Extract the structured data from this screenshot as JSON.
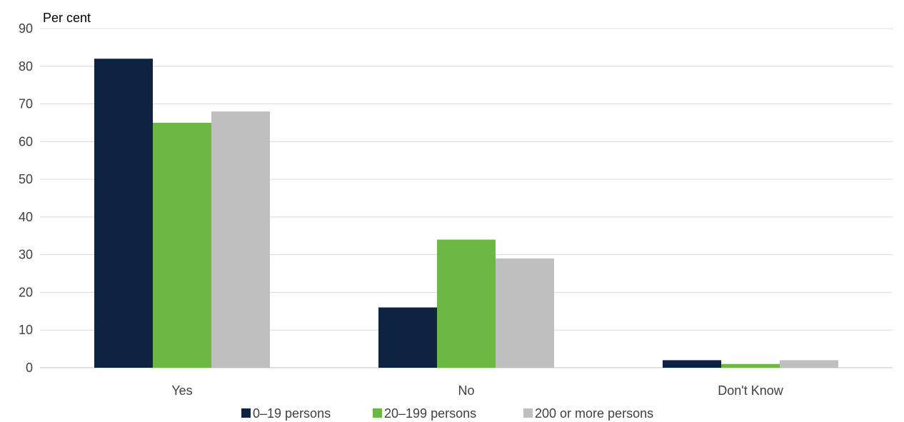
{
  "chart_data": {
    "type": "bar",
    "unit_label": "Per cent",
    "categories": [
      "Yes",
      "No",
      "Don't Know"
    ],
    "series": [
      {
        "name": "0–19 persons",
        "color": "#0e2341",
        "values": [
          82,
          16,
          2
        ]
      },
      {
        "name": "20–199 persons",
        "color": "#6db744",
        "values": [
          65,
          34,
          1
        ]
      },
      {
        "name": "200 or more persons",
        "color": "#bfbfbf",
        "values": [
          68,
          29,
          2
        ]
      }
    ],
    "y_ticks": [
      "0",
      "10",
      "20",
      "30",
      "40",
      "50",
      "60",
      "70",
      "80",
      "90"
    ],
    "ylim": [
      0,
      90
    ],
    "grid": true,
    "legend_position": "bottom"
  }
}
